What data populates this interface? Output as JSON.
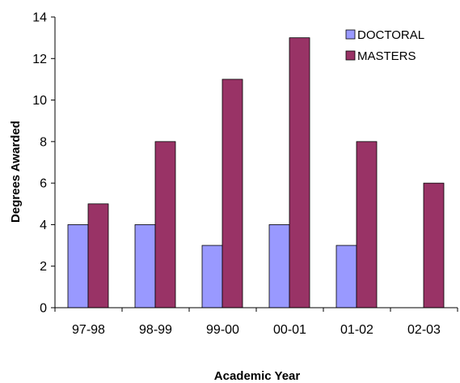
{
  "chart_data": {
    "type": "bar",
    "categories": [
      "97-98",
      "98-99",
      "99-00",
      "00-01",
      "01-02",
      "02-03"
    ],
    "series": [
      {
        "name": "DOCTORAL",
        "values": [
          4,
          4,
          3,
          4,
          3,
          0
        ],
        "color": "#9999ff"
      },
      {
        "name": "MASTERS",
        "values": [
          5,
          8,
          11,
          13,
          8,
          6
        ],
        "color": "#993366"
      }
    ],
    "xlabel": "Academic Year",
    "ylabel": "Degrees Awarded",
    "ylim": [
      0,
      14
    ],
    "yticks": [
      "0",
      "2",
      "4",
      "6",
      "8",
      "10",
      "12",
      "14"
    ],
    "grid": false,
    "legend_position": "top-right"
  }
}
